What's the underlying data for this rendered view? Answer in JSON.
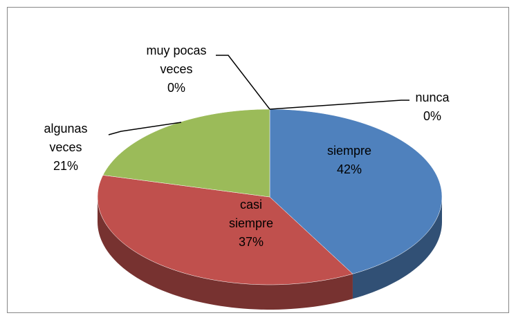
{
  "chart_data": {
    "type": "pie",
    "categories": [
      "siempre",
      "casi siempre",
      "algunas veces",
      "muy pocas veces",
      "nunca"
    ],
    "values": [
      42,
      37,
      21,
      0,
      0
    ],
    "value_labels": [
      "42%",
      "37%",
      "21%",
      "0%",
      "0%"
    ],
    "colors": [
      "#4f81bd",
      "#c0504d",
      "#9bbb59",
      "#8064a2",
      "#4bacc6"
    ],
    "three_d": true
  }
}
